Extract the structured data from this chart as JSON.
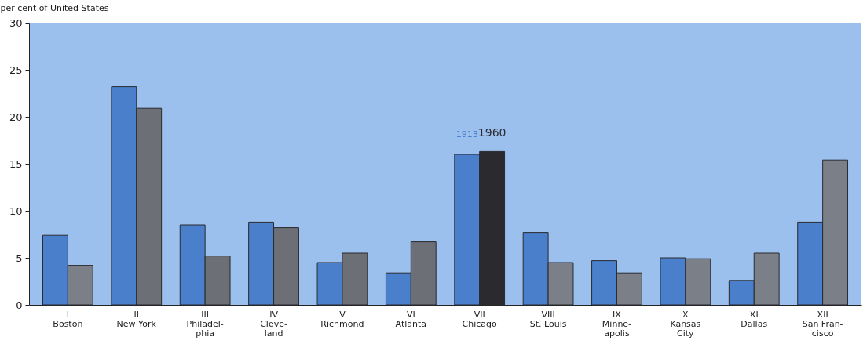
{
  "chart_data": {
    "type": "bar",
    "ylabel": "per cent of United States",
    "categories": [
      "I\nBoston",
      "II\nNew York",
      "III\nPhiladel-\nphia",
      "IV\nCleve-\nland",
      "V\nRichmond",
      "VI\nAtlanta",
      "VII\nChicago",
      "VIII\nSt. Louis",
      "IX\nMinne-\napolis",
      "X\nKansas\nCity",
      "XI\nDallas",
      "XII\nSan Fran-\ncisco"
    ],
    "series": [
      {
        "name": "1913",
        "color": "#4a7fcb",
        "values": [
          7.4,
          23.2,
          8.5,
          8.8,
          4.5,
          3.4,
          16.0,
          7.7,
          4.7,
          5.0,
          2.6,
          8.8
        ]
      },
      {
        "name": "1960",
        "color": "#7b7f87",
        "colors": [
          "#7b7f87",
          "#6c6f75",
          "#6c6f75",
          "#6c6f75",
          "#6c6f75",
          "#6c6f75",
          "#2b2b2f",
          "#7b7f87",
          "#7b7f87",
          "#7b7f87",
          "#7b7f87",
          "#7b7f87"
        ],
        "values": [
          4.2,
          20.9,
          5.2,
          8.2,
          5.5,
          6.7,
          16.3,
          4.5,
          3.4,
          4.9,
          5.5,
          15.4
        ]
      }
    ],
    "ylim": [
      0,
      30
    ],
    "yticks": [
      0,
      5,
      10,
      15,
      20,
      25,
      30
    ],
    "legend": false,
    "grid": false
  }
}
